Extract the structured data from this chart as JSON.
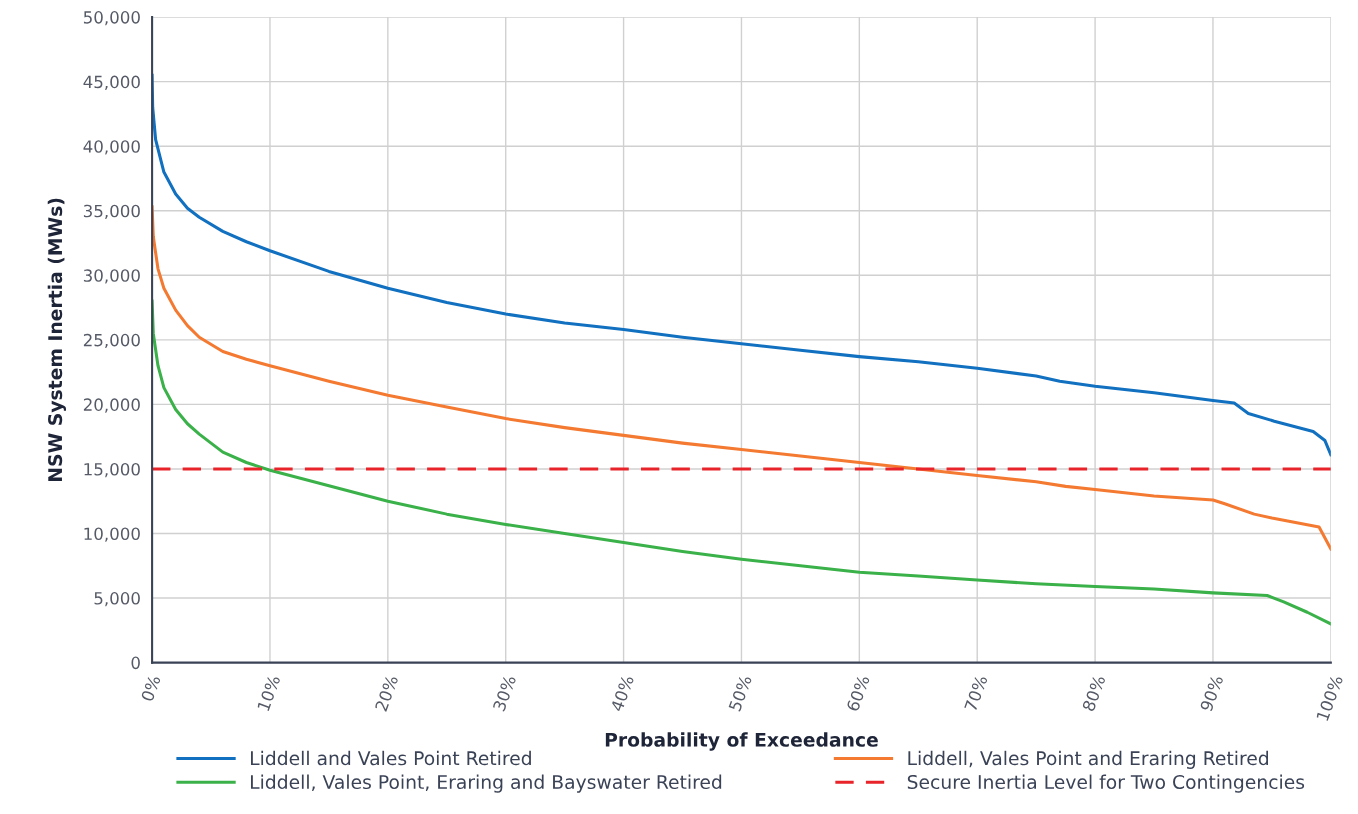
{
  "chart_data": {
    "type": "line",
    "xlabel": "Probability of Exceedance",
    "ylabel": "NSW System Inertia (MWs)",
    "xlim": [
      0,
      100
    ],
    "ylim": [
      0,
      50000
    ],
    "xticks": [
      {
        "value": 0,
        "label": "0%"
      },
      {
        "value": 10,
        "label": "10%"
      },
      {
        "value": 20,
        "label": "20%"
      },
      {
        "value": 30,
        "label": "30%"
      },
      {
        "value": 40,
        "label": "40%"
      },
      {
        "value": 50,
        "label": "50%"
      },
      {
        "value": 60,
        "label": "60%"
      },
      {
        "value": 70,
        "label": "70%"
      },
      {
        "value": 80,
        "label": "80%"
      },
      {
        "value": 90,
        "label": "90%"
      },
      {
        "value": 100,
        "label": "100%"
      }
    ],
    "yticks": [
      {
        "value": 0,
        "label": "0"
      },
      {
        "value": 5000,
        "label": "5,000"
      },
      {
        "value": 10000,
        "label": "10,000"
      },
      {
        "value": 15000,
        "label": "15,000"
      },
      {
        "value": 20000,
        "label": "20,000"
      },
      {
        "value": 25000,
        "label": "25,000"
      },
      {
        "value": 30000,
        "label": "30,000"
      },
      {
        "value": 35000,
        "label": "35,000"
      },
      {
        "value": 40000,
        "label": "40,000"
      },
      {
        "value": 45000,
        "label": "45,000"
      },
      {
        "value": 50000,
        "label": "50,000"
      }
    ],
    "grid": true,
    "legend": "bottom",
    "marker": "none",
    "line_style": "solid",
    "series": [
      {
        "name": "Liddell and Vales Point Retired",
        "color": "#1170c0",
        "x": [
          0,
          0.05,
          0.3,
          1,
          2,
          3,
          4,
          6,
          8,
          10,
          15,
          20,
          25,
          30,
          35,
          40,
          45,
          50,
          55,
          60,
          65,
          70,
          75,
          77,
          80,
          85,
          90,
          91.8,
          93,
          95.2,
          98.5,
          99.5,
          100
        ],
        "values": [
          45500,
          43000,
          40500,
          38000,
          36300,
          35200,
          34500,
          33400,
          32600,
          31900,
          30300,
          29000,
          27900,
          27000,
          26300,
          25800,
          25200,
          24700,
          24200,
          23700,
          23300,
          22800,
          22200,
          21800,
          21400,
          20900,
          20300,
          20100,
          19300,
          18700,
          17900,
          17200,
          16100
        ]
      },
      {
        "name": "Liddell, Vales Point and Eraring Retired",
        "color": "#f47a32",
        "x": [
          0,
          0.1,
          0.5,
          1,
          2,
          3,
          4,
          6,
          8,
          10,
          15,
          20,
          25,
          30,
          35,
          40,
          45,
          50,
          55,
          60,
          65,
          70,
          75,
          77.5,
          80,
          85,
          90,
          91,
          93.5,
          95,
          99,
          100
        ],
        "values": [
          35300,
          33000,
          30500,
          29000,
          27300,
          26100,
          25200,
          24100,
          23500,
          23000,
          21800,
          20700,
          19800,
          18900,
          18200,
          17600,
          17000,
          16500,
          16000,
          15500,
          15000,
          14500,
          14000,
          13650,
          13400,
          12900,
          12600,
          12300,
          11500,
          11200,
          10500,
          8800
        ]
      },
      {
        "name": "Liddell, Vales Point, Eraring and Bayswater Retired",
        "color": "#3bb14a",
        "x": [
          0,
          0.1,
          0.5,
          1,
          2,
          3,
          4,
          6,
          8,
          10,
          15,
          20,
          25,
          30,
          35,
          40,
          45,
          50,
          55,
          60,
          65,
          70,
          75,
          80,
          85,
          90,
          94.6,
          96,
          98,
          100
        ],
        "values": [
          28000,
          25500,
          23000,
          21300,
          19600,
          18500,
          17700,
          16300,
          15500,
          14900,
          13700,
          12500,
          11500,
          10700,
          10000,
          9300,
          8600,
          8000,
          7500,
          7000,
          6700,
          6400,
          6100,
          5900,
          5700,
          5400,
          5200,
          4700,
          3900,
          3000
        ]
      }
    ],
    "ref_lines": [
      {
        "axis": "y",
        "value": 15000,
        "label": "Secure Inertia Level for Two Contingencies",
        "color": "#e8242a",
        "line_style": "dashed"
      }
    ]
  }
}
